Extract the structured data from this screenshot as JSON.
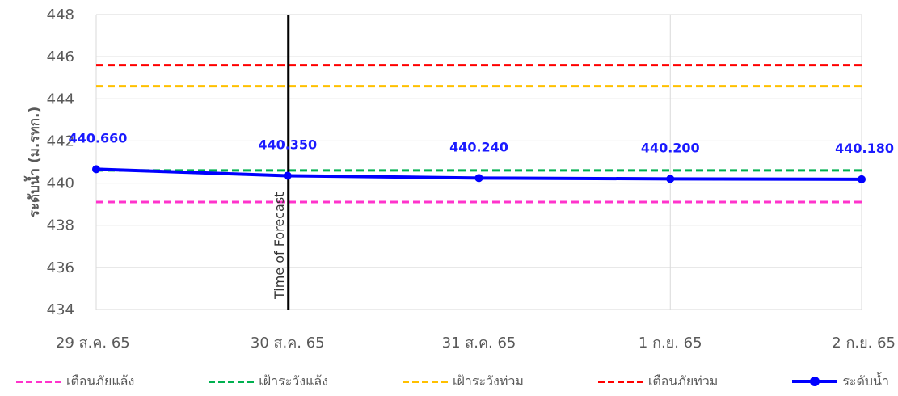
{
  "chart_data": {
    "type": "line",
    "title": "",
    "ylabel": "ระดับน้ำ (ม.รทก.)",
    "xlabel": "",
    "ylim": [
      434,
      448
    ],
    "yticks": [
      434,
      436,
      438,
      440,
      442,
      444,
      446,
      448
    ],
    "categories": [
      "29 ส.ค. 65",
      "30 ส.ค. 65",
      "31 ส.ค. 65",
      "1 ก.ย. 65",
      "2 ก.ย. 65"
    ],
    "grid": true,
    "legend_position": "bottom",
    "series": [
      {
        "name": "เตือนภัยแล้ง",
        "kind": "threshold",
        "style": "dashed",
        "color": "#ff33cc",
        "value": 439.1
      },
      {
        "name": "เฝ้าระวังแล้ง",
        "kind": "threshold",
        "style": "dashed",
        "color": "#00b050",
        "value": 440.6
      },
      {
        "name": "เฝ้าระวังท่วม",
        "kind": "threshold",
        "style": "dashed",
        "color": "#ffc000",
        "value": 444.6
      },
      {
        "name": "เตือนภัยท่วม",
        "kind": "threshold",
        "style": "dashed",
        "color": "#ff0000",
        "value": 445.6
      },
      {
        "name": "ระดับน้ำ",
        "kind": "line",
        "style": "solid",
        "color": "#0000ff",
        "values": [
          440.66,
          440.35,
          440.24,
          440.2,
          440.18
        ],
        "labels": [
          "440.660",
          "440.350",
          "440.240",
          "440.200",
          "440.180"
        ]
      }
    ],
    "annotations": [
      {
        "type": "vertical-line",
        "category": "30 ส.ค. 65",
        "text": "Time of Forecast",
        "color": "#000000"
      }
    ]
  }
}
